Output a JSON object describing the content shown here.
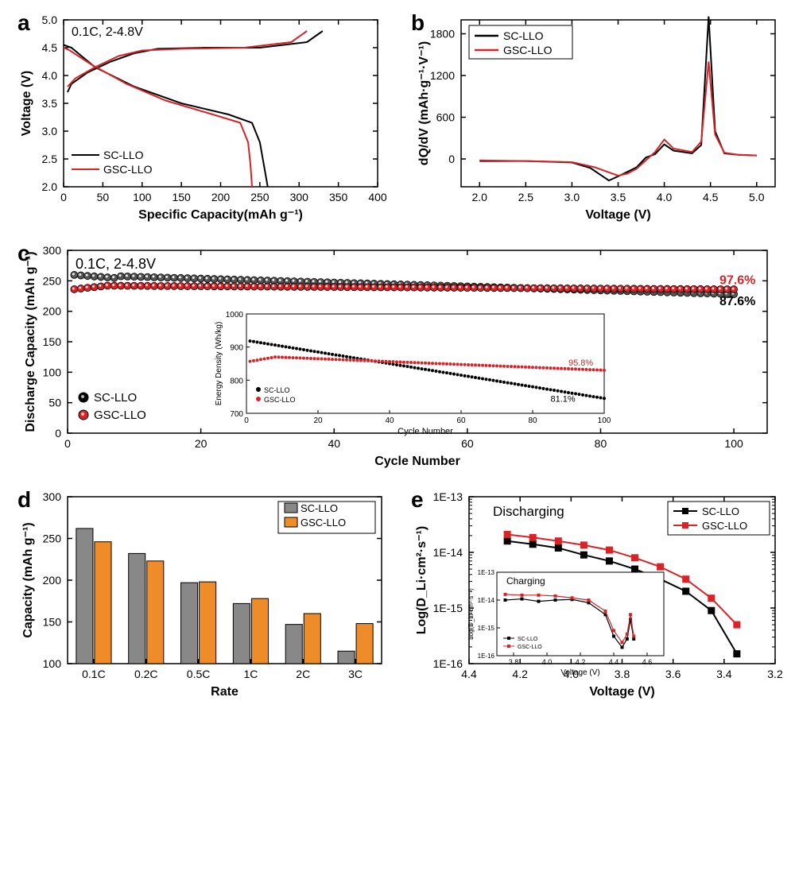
{
  "panel_a": {
    "label": "a",
    "annotation": "0.1C, 2-4.8V",
    "xlabel": "Specific Capacity(mAh g⁻¹)",
    "ylabel": "Voltage (V)",
    "xlim": [
      0,
      400
    ],
    "xticks": [
      0,
      50,
      100,
      150,
      200,
      250,
      300,
      350,
      400
    ],
    "ylim": [
      2.0,
      5.0
    ],
    "yticks": [
      2.0,
      2.5,
      3.0,
      3.5,
      4.0,
      4.5,
      5.0
    ],
    "legend": [
      {
        "label": "SC-LLO",
        "color": "#000000"
      },
      {
        "label": "GSC-LLO",
        "color": "#d62428"
      }
    ],
    "curves": {
      "sc_charge": {
        "color": "#000000",
        "pts": [
          [
            5,
            3.7
          ],
          [
            10,
            3.85
          ],
          [
            30,
            4.05
          ],
          [
            60,
            4.25
          ],
          [
            90,
            4.4
          ],
          [
            120,
            4.48
          ],
          [
            180,
            4.5
          ],
          [
            250,
            4.5
          ],
          [
            310,
            4.6
          ],
          [
            330,
            4.8
          ]
        ]
      },
      "sc_discharge": {
        "color": "#000000",
        "pts": [
          [
            260,
            2.0
          ],
          [
            255,
            2.4
          ],
          [
            250,
            2.8
          ],
          [
            240,
            3.15
          ],
          [
            210,
            3.3
          ],
          [
            150,
            3.5
          ],
          [
            90,
            3.8
          ],
          [
            40,
            4.15
          ],
          [
            10,
            4.5
          ],
          [
            0,
            4.55
          ]
        ]
      },
      "gsc_charge": {
        "color": "#d62428",
        "pts": [
          [
            5,
            3.8
          ],
          [
            15,
            3.95
          ],
          [
            40,
            4.15
          ],
          [
            70,
            4.35
          ],
          [
            100,
            4.45
          ],
          [
            150,
            4.48
          ],
          [
            230,
            4.5
          ],
          [
            290,
            4.6
          ],
          [
            310,
            4.8
          ]
        ]
      },
      "gsc_discharge": {
        "color": "#d62428",
        "pts": [
          [
            240,
            2.0
          ],
          [
            238,
            2.4
          ],
          [
            235,
            2.8
          ],
          [
            225,
            3.15
          ],
          [
            190,
            3.3
          ],
          [
            130,
            3.55
          ],
          [
            80,
            3.85
          ],
          [
            35,
            4.2
          ],
          [
            8,
            4.45
          ],
          [
            0,
            4.5
          ]
        ]
      }
    }
  },
  "panel_b": {
    "label": "b",
    "xlabel": "Voltage (V)",
    "ylabel": "dQ/dV (mAh·g⁻¹·V⁻¹)",
    "xlim": [
      1.8,
      5.2
    ],
    "xticks": [
      2.0,
      2.5,
      3.0,
      3.5,
      4.0,
      4.5,
      5.0
    ],
    "ylim": [
      -400,
      2000
    ],
    "yticks": [
      0,
      600,
      1200,
      1800
    ],
    "legend": [
      {
        "label": "SC-LLO",
        "color": "#000000"
      },
      {
        "label": "GSC-LLO",
        "color": "#d62428"
      }
    ],
    "curves": {
      "sc": {
        "color": "#000000",
        "pts": [
          [
            2.0,
            -30
          ],
          [
            2.5,
            -30
          ],
          [
            3.0,
            -50
          ],
          [
            3.2,
            -130
          ],
          [
            3.4,
            -310
          ],
          [
            3.5,
            -250
          ],
          [
            3.7,
            -120
          ],
          [
            3.8,
            20
          ],
          [
            3.9,
            70
          ],
          [
            4.0,
            210
          ],
          [
            4.1,
            120
          ],
          [
            4.3,
            80
          ],
          [
            4.4,
            200
          ],
          [
            4.48,
            2050
          ],
          [
            4.55,
            400
          ],
          [
            4.65,
            80
          ],
          [
            4.8,
            60
          ],
          [
            5.0,
            50
          ]
        ]
      },
      "gsc": {
        "color": "#d62428",
        "pts": [
          [
            2.0,
            -20
          ],
          [
            2.5,
            -30
          ],
          [
            3.0,
            -45
          ],
          [
            3.25,
            -120
          ],
          [
            3.5,
            -240
          ],
          [
            3.6,
            -210
          ],
          [
            3.7,
            -140
          ],
          [
            3.8,
            -20
          ],
          [
            3.9,
            100
          ],
          [
            4.0,
            280
          ],
          [
            4.1,
            150
          ],
          [
            4.3,
            100
          ],
          [
            4.4,
            250
          ],
          [
            4.48,
            1400
          ],
          [
            4.55,
            350
          ],
          [
            4.65,
            90
          ],
          [
            4.8,
            60
          ],
          [
            5.0,
            50
          ]
        ]
      }
    }
  },
  "panel_c": {
    "label": "c",
    "annotation": "0.1C, 2-4.8V",
    "xlabel": "Cycle Number",
    "ylabel": "Discharge Capacity (mAh g⁻¹)",
    "xlim": [
      0,
      105
    ],
    "xticks": [
      0,
      20,
      40,
      60,
      80,
      100
    ],
    "ylim": [
      0,
      300
    ],
    "yticks": [
      0,
      50,
      100,
      150,
      200,
      250,
      300
    ],
    "legend": [
      {
        "label": "SC-LLO",
        "color": "#000000"
      },
      {
        "label": "GSC-LLO",
        "color": "#d62428"
      }
    ],
    "sc_end_label": "87.6%",
    "gsc_end_label": "97.6%",
    "sc_data": {
      "color": "#000000",
      "start": 260,
      "end": 228
    },
    "gsc_data": {
      "color": "#d62428",
      "start": 235,
      "mid": 242,
      "end": 236
    },
    "inset": {
      "xlabel": "Cycle Number",
      "ylabel": "Energy Density (Wh/kg)",
      "xlim": [
        0,
        100
      ],
      "xticks": [
        0,
        20,
        40,
        60,
        80,
        100
      ],
      "ylim": [
        700,
        1000
      ],
      "yticks": [
        700,
        800,
        900,
        1000
      ],
      "sc_end": "81.1%",
      "gsc_end": "95.8%",
      "legend": [
        {
          "label": "SC-LLO",
          "color": "#000000"
        },
        {
          "label": "GSC-LLO",
          "color": "#d62428"
        }
      ]
    }
  },
  "panel_d": {
    "label": "d",
    "xlabel": "Rate",
    "ylabel": "Capacity (mAh g⁻¹)",
    "ylim": [
      100,
      300
    ],
    "yticks": [
      100,
      150,
      200,
      250,
      300
    ],
    "categories": [
      "0.1C",
      "0.2C",
      "0.5C",
      "1C",
      "2C",
      "3C"
    ],
    "legend": [
      {
        "label": "SC-LLO",
        "color": "#888888"
      },
      {
        "label": "GSC-LLO",
        "color": "#ef8c2a"
      }
    ],
    "sc": [
      262,
      232,
      197,
      172,
      147,
      115
    ],
    "gsc": [
      246,
      223,
      198,
      178,
      160,
      148
    ],
    "bar_border": "#000000"
  },
  "panel_e": {
    "label": "e",
    "annotation": "Discharging",
    "xlabel": "Voltage (V)",
    "ylabel": "Log(D_Li·cm²·s⁻¹)",
    "xlim": [
      4.4,
      3.2
    ],
    "xticks": [
      4.4,
      4.2,
      4.0,
      3.8,
      3.6,
      3.4,
      3.2
    ],
    "ylim": [
      1e-16,
      1e-13
    ],
    "yticks_exp": [
      -16,
      -15,
      -14,
      -13
    ],
    "legend": [
      {
        "label": "SC-LLO",
        "color": "#000000"
      },
      {
        "label": "GSC-LLO",
        "color": "#d62428"
      }
    ],
    "sc": {
      "color": "#000000",
      "pts": [
        [
          4.25,
          1.6e-14
        ],
        [
          4.15,
          1.4e-14
        ],
        [
          4.05,
          1.2e-14
        ],
        [
          3.95,
          9e-15
        ],
        [
          3.85,
          7e-15
        ],
        [
          3.75,
          5e-15
        ],
        [
          3.65,
          3.3e-15
        ],
        [
          3.55,
          2e-15
        ],
        [
          3.45,
          9e-16
        ],
        [
          3.35,
          1.5e-16
        ]
      ]
    },
    "gsc": {
      "color": "#d62428",
      "pts": [
        [
          4.25,
          2.1e-14
        ],
        [
          4.15,
          1.85e-14
        ],
        [
          4.05,
          1.6e-14
        ],
        [
          3.95,
          1.35e-14
        ],
        [
          3.85,
          1.1e-14
        ],
        [
          3.75,
          8e-15
        ],
        [
          3.65,
          5.5e-15
        ],
        [
          3.55,
          3.3e-15
        ],
        [
          3.45,
          1.5e-15
        ],
        [
          3.35,
          5e-16
        ]
      ]
    },
    "inset": {
      "annotation": "Charging",
      "xlabel": "Voltage (V)",
      "ylabel": "Log(D_Li·cm²·s⁻¹)",
      "xlim": [
        3.7,
        4.7
      ],
      "xticks": [
        3.8,
        4.0,
        4.2,
        4.4,
        4.6
      ],
      "ylim_exp": [
        -16,
        -13
      ]
    }
  }
}
